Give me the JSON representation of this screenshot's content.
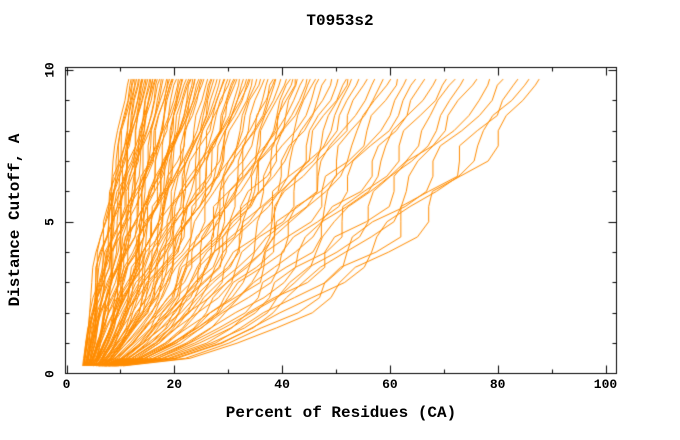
{
  "chart_data": {
    "type": "line",
    "title": "T0953s2",
    "xlabel": "Percent of Residues (CA)",
    "ylabel": "Distance Cutoff, A",
    "xlim": [
      0,
      102
    ],
    "ylim": [
      0,
      10.1
    ],
    "x_major_ticks": [
      0,
      20,
      40,
      60,
      80,
      100
    ],
    "x_minor_tick_step": 10,
    "y_major_ticks": [
      0,
      5,
      10
    ],
    "y_minor_tick_step": 1,
    "grid": false,
    "legend": "none",
    "box_border": true,
    "axis_color": "#000000",
    "background_color": "#ffffff",
    "series_color": "#FF8C00",
    "cutoff_points": {
      "start": 0.25,
      "end": 9.7,
      "step": 0.5
    },
    "curves_encoding": "Each model accuracy curve is [percent_of_residues_at_0.25A, percent_of_residues_at_9.7A, shape_exponent]; x(t)=a+(b-a)*t^g for t in [0,1] over the cutoff range, percent monotonically increasing with cutoff.",
    "curves": [
      [
        3.0,
        11.5,
        1.15
      ],
      [
        3.2,
        12.0,
        1.05
      ],
      [
        3.1,
        12.4,
        1.1
      ],
      [
        3.4,
        12.8,
        0.98
      ],
      [
        3.3,
        13.1,
        1.2
      ],
      [
        3.6,
        13.5,
        0.92
      ],
      [
        3.2,
        13.8,
        1.08
      ],
      [
        3.8,
        14.2,
        1.0
      ],
      [
        3.5,
        14.5,
        1.12
      ],
      [
        4.0,
        14.8,
        0.9
      ],
      [
        3.7,
        15.1,
        1.05
      ],
      [
        4.2,
        15.4,
        0.95
      ],
      [
        3.9,
        15.7,
        1.1
      ],
      [
        4.4,
        16.0,
        0.88
      ],
      [
        3.4,
        12.2,
        1.18
      ],
      [
        3.6,
        14.0,
        1.02
      ],
      [
        4.1,
        15.9,
        0.93
      ],
      [
        3.8,
        13.4,
        1.07
      ],
      [
        3.9,
        16.3,
        0.95
      ],
      [
        4.3,
        16.8,
        0.85
      ],
      [
        4.0,
        17.2,
        1.0
      ],
      [
        4.5,
        17.6,
        0.9
      ],
      [
        4.2,
        18.0,
        0.82
      ],
      [
        4.7,
        18.5,
        0.95
      ],
      [
        4.1,
        19.0,
        0.88
      ],
      [
        4.9,
        19.4,
        0.8
      ],
      [
        4.4,
        19.9,
        0.92
      ],
      [
        5.1,
        20.3,
        0.78
      ],
      [
        4.6,
        20.8,
        0.9
      ],
      [
        5.3,
        21.2,
        0.85
      ],
      [
        4.8,
        21.7,
        0.76
      ],
      [
        5.0,
        22.1,
        0.88
      ],
      [
        4.5,
        22.6,
        0.8
      ],
      [
        5.5,
        23.0,
        0.74
      ],
      [
        5.2,
        23.5,
        0.86
      ],
      [
        4.7,
        23.9,
        0.79
      ],
      [
        5.4,
        16.5,
        1.0
      ],
      [
        4.9,
        18.8,
        0.84
      ],
      [
        5.6,
        21.5,
        0.77
      ],
      [
        5.0,
        19.6,
        0.9
      ],
      [
        4.6,
        22.9,
        0.82
      ],
      [
        5.8,
        23.7,
        0.75
      ],
      [
        5.1,
        24.4,
        0.82
      ],
      [
        5.5,
        25.0,
        0.75
      ],
      [
        5.2,
        25.6,
        0.86
      ],
      [
        5.9,
        26.2,
        0.72
      ],
      [
        5.4,
        26.8,
        0.8
      ],
      [
        6.1,
        27.4,
        0.7
      ],
      [
        5.6,
        28.0,
        0.84
      ],
      [
        6.3,
        28.6,
        0.68
      ],
      [
        5.8,
        29.2,
        0.78
      ],
      [
        6.5,
        29.8,
        0.73
      ],
      [
        5.3,
        30.4,
        0.8
      ],
      [
        6.0,
        31.0,
        0.67
      ],
      [
        5.7,
        31.6,
        0.76
      ],
      [
        6.6,
        32.2,
        0.7
      ],
      [
        5.9,
        32.8,
        0.74
      ],
      [
        6.2,
        33.4,
        0.66
      ],
      [
        5.5,
        34.0,
        0.78
      ],
      [
        6.8,
        24.8,
        0.85
      ],
      [
        6.4,
        27.0,
        0.72
      ],
      [
        5.0,
        29.5,
        0.8
      ],
      [
        6.7,
        31.3,
        0.69
      ],
      [
        6.1,
        33.7,
        0.71
      ],
      [
        5.6,
        34.6,
        0.72
      ],
      [
        6.9,
        35.3,
        0.64
      ],
      [
        6.2,
        36.0,
        0.7
      ],
      [
        7.1,
        36.8,
        0.62
      ],
      [
        6.4,
        37.5,
        0.68
      ],
      [
        7.3,
        38.3,
        0.6
      ],
      [
        6.6,
        39.0,
        0.66
      ],
      [
        7.5,
        39.8,
        0.58
      ],
      [
        6.8,
        40.6,
        0.64
      ],
      [
        7.0,
        41.4,
        0.62
      ],
      [
        6.3,
        42.2,
        0.68
      ],
      [
        7.7,
        43.0,
        0.57
      ],
      [
        6.5,
        43.8,
        0.63
      ],
      [
        7.2,
        44.6,
        0.6
      ],
      [
        6.7,
        45.4,
        0.65
      ],
      [
        7.9,
        46.0,
        0.56
      ],
      [
        6.1,
        38.8,
        0.67
      ],
      [
        7.4,
        42.6,
        0.59
      ],
      [
        6.9,
        47.0,
        0.65
      ],
      [
        7.6,
        48.2,
        0.6
      ],
      [
        7.0,
        49.4,
        0.63
      ],
      [
        8.1,
        50.6,
        0.58
      ],
      [
        7.2,
        51.8,
        0.62
      ],
      [
        7.8,
        53.0,
        0.57
      ],
      [
        7.1,
        54.4,
        0.6
      ],
      [
        8.3,
        55.8,
        0.55
      ],
      [
        7.4,
        57.2,
        0.58
      ],
      [
        8.0,
        58.6,
        0.56
      ],
      [
        7.3,
        60.0,
        0.57
      ],
      [
        8.5,
        52.4,
        0.55
      ],
      [
        7.7,
        61.5,
        0.58
      ],
      [
        8.6,
        63.0,
        0.55
      ],
      [
        7.9,
        64.8,
        0.57
      ],
      [
        8.8,
        66.6,
        0.54
      ],
      [
        8.2,
        68.4,
        0.56
      ],
      [
        9.0,
        70.2,
        0.53
      ],
      [
        8.4,
        72.0,
        0.55
      ],
      [
        9.2,
        74.0,
        0.52
      ],
      [
        8.7,
        76.0,
        0.55
      ],
      [
        9.5,
        78.5,
        0.52
      ],
      [
        8.9,
        81.0,
        0.54
      ],
      [
        10.0,
        83.5,
        0.5
      ],
      [
        9.3,
        85.8,
        0.53
      ],
      [
        10.5,
        88.0,
        0.5
      ]
    ]
  }
}
